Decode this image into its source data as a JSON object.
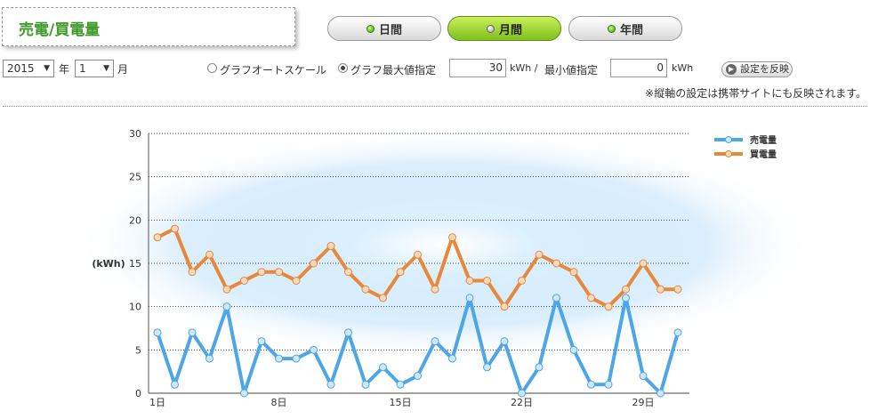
{
  "header": {
    "title": "売電/買電量"
  },
  "tabs": [
    {
      "label": "日間",
      "active": false
    },
    {
      "label": "月間",
      "active": true
    },
    {
      "label": "年間",
      "active": false
    }
  ],
  "controls": {
    "year_value": "2015",
    "year_unit": "年",
    "month_value": "1",
    "month_unit": "月",
    "auto_scale_label": "グラフオートスケール",
    "max_label": "グラフ最大値指定",
    "max_value": "30",
    "max_unit": "kWh /",
    "min_label": "最小値指定",
    "min_value": "0",
    "min_unit": "kWh",
    "apply_label": "設定を反映",
    "note": "※縦軸の設定は携帯サイトにも反映されます。"
  },
  "chart_data": {
    "type": "line",
    "ylabel": "(kWh)",
    "ylim": [
      0,
      30
    ],
    "yticks": [
      0,
      5,
      10,
      15,
      20,
      25,
      30
    ],
    "x": [
      1,
      2,
      3,
      4,
      5,
      6,
      7,
      8,
      9,
      10,
      11,
      12,
      13,
      14,
      15,
      16,
      17,
      18,
      19,
      20,
      21,
      22,
      23,
      24,
      25,
      26,
      27,
      28,
      29,
      30,
      31
    ],
    "xtick_labels": [
      "1日",
      "8日",
      "15日",
      "22日",
      "29日"
    ],
    "xtick_positions": [
      1,
      8,
      15,
      22,
      29
    ],
    "grid": true,
    "legend_position": "top-right",
    "series": [
      {
        "name": "売電量",
        "color": "#4da6e8",
        "values": [
          7,
          1,
          7,
          4,
          10,
          0,
          6,
          4,
          4,
          5,
          1,
          7,
          1,
          3,
          1,
          2,
          6,
          4,
          11,
          3,
          6,
          0,
          3,
          11,
          5,
          1,
          1,
          11,
          2,
          0,
          7
        ]
      },
      {
        "name": "買電量",
        "color": "#e8883a",
        "values": [
          18,
          19,
          14,
          16,
          12,
          13,
          14,
          14,
          13,
          15,
          17,
          14,
          12,
          11,
          14,
          16,
          12,
          18,
          13,
          13,
          10,
          13,
          16,
          15,
          14,
          11,
          10,
          12,
          15,
          12,
          12
        ]
      }
    ]
  }
}
